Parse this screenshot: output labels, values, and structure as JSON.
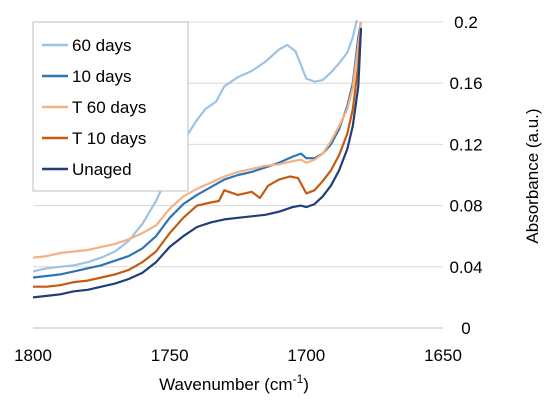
{
  "chart_data": {
    "type": "line",
    "xlabel": "Wavenumber (cm",
    "xlabel_sup": "-1",
    "xlabel_end": ")",
    "ylabel": "Absorbance (a.u.)",
    "xlim": [
      1800,
      1650
    ],
    "ylim": [
      0,
      0.2
    ],
    "x_ticks": [
      "1800",
      "1750",
      "1700",
      "1650"
    ],
    "y_ticks": [
      "0",
      "0.04",
      "0.08",
      "0.12",
      "0.16",
      "0.2"
    ],
    "y_tick_values": [
      0,
      0.04,
      0.08,
      0.12,
      0.16,
      0.2
    ],
    "x_tick_values": [
      1800,
      1750,
      1700,
      1650
    ],
    "grid": "horizontal",
    "legend_position": "top-left",
    "series": [
      {
        "name": "60 days",
        "color": "#9dc3e6",
        "points": [
          [
            1800,
            0.037
          ],
          [
            1795,
            0.039
          ],
          [
            1790,
            0.04
          ],
          [
            1785,
            0.041
          ],
          [
            1780,
            0.043
          ],
          [
            1775,
            0.046
          ],
          [
            1770,
            0.05
          ],
          [
            1765,
            0.057
          ],
          [
            1760,
            0.068
          ],
          [
            1755,
            0.083
          ],
          [
            1750,
            0.102
          ],
          [
            1745,
            0.122
          ],
          [
            1740,
            0.136
          ],
          [
            1737,
            0.143
          ],
          [
            1733,
            0.148
          ],
          [
            1730,
            0.158
          ],
          [
            1725,
            0.164
          ],
          [
            1720,
            0.168
          ],
          [
            1715,
            0.174
          ],
          [
            1710,
            0.182
          ],
          [
            1707,
            0.185
          ],
          [
            1704,
            0.181
          ],
          [
            1702,
            0.172
          ],
          [
            1700,
            0.163
          ],
          [
            1697,
            0.161
          ],
          [
            1694,
            0.162
          ],
          [
            1691,
            0.167
          ],
          [
            1688,
            0.173
          ],
          [
            1685,
            0.18
          ],
          [
            1683,
            0.19
          ],
          [
            1681,
            0.205
          ]
        ]
      },
      {
        "name": "10 days",
        "color": "#2e75b6",
        "points": [
          [
            1800,
            0.033
          ],
          [
            1795,
            0.034
          ],
          [
            1790,
            0.035
          ],
          [
            1785,
            0.037
          ],
          [
            1780,
            0.039
          ],
          [
            1775,
            0.041
          ],
          [
            1770,
            0.044
          ],
          [
            1765,
            0.047
          ],
          [
            1760,
            0.052
          ],
          [
            1755,
            0.06
          ],
          [
            1750,
            0.072
          ],
          [
            1745,
            0.081
          ],
          [
            1740,
            0.087
          ],
          [
            1735,
            0.092
          ],
          [
            1730,
            0.097
          ],
          [
            1725,
            0.1
          ],
          [
            1720,
            0.102
          ],
          [
            1715,
            0.105
          ],
          [
            1710,
            0.108
          ],
          [
            1705,
            0.112
          ],
          [
            1702,
            0.114
          ],
          [
            1700,
            0.111
          ],
          [
            1697,
            0.111
          ],
          [
            1694,
            0.114
          ],
          [
            1691,
            0.12
          ],
          [
            1688,
            0.13
          ],
          [
            1685,
            0.145
          ],
          [
            1683,
            0.16
          ],
          [
            1681,
            0.19
          ],
          [
            1680,
            0.2
          ]
        ]
      },
      {
        "name": "T 60 days",
        "color": "#f4b183",
        "points": [
          [
            1800,
            0.046
          ],
          [
            1795,
            0.047
          ],
          [
            1790,
            0.049
          ],
          [
            1785,
            0.05
          ],
          [
            1780,
            0.051
          ],
          [
            1775,
            0.053
          ],
          [
            1770,
            0.055
          ],
          [
            1765,
            0.058
          ],
          [
            1760,
            0.062
          ],
          [
            1755,
            0.067
          ],
          [
            1750,
            0.078
          ],
          [
            1745,
            0.086
          ],
          [
            1740,
            0.091
          ],
          [
            1735,
            0.095
          ],
          [
            1730,
            0.099
          ],
          [
            1725,
            0.102
          ],
          [
            1720,
            0.104
          ],
          [
            1715,
            0.106
          ],
          [
            1710,
            0.107
          ],
          [
            1705,
            0.109
          ],
          [
            1702,
            0.11
          ],
          [
            1700,
            0.108
          ],
          [
            1697,
            0.11
          ],
          [
            1694,
            0.114
          ],
          [
            1691,
            0.122
          ],
          [
            1688,
            0.132
          ],
          [
            1685,
            0.143
          ],
          [
            1683,
            0.157
          ],
          [
            1681,
            0.185
          ],
          [
            1680,
            0.2
          ]
        ]
      },
      {
        "name": "T 10 days",
        "color": "#c55a11",
        "points": [
          [
            1800,
            0.027
          ],
          [
            1795,
            0.027
          ],
          [
            1790,
            0.028
          ],
          [
            1785,
            0.03
          ],
          [
            1780,
            0.031
          ],
          [
            1775,
            0.033
          ],
          [
            1770,
            0.035
          ],
          [
            1765,
            0.038
          ],
          [
            1760,
            0.043
          ],
          [
            1755,
            0.05
          ],
          [
            1750,
            0.062
          ],
          [
            1745,
            0.072
          ],
          [
            1740,
            0.08
          ],
          [
            1735,
            0.082
          ],
          [
            1732,
            0.083
          ],
          [
            1730,
            0.09
          ],
          [
            1725,
            0.087
          ],
          [
            1720,
            0.089
          ],
          [
            1717,
            0.085
          ],
          [
            1714,
            0.093
          ],
          [
            1710,
            0.097
          ],
          [
            1706,
            0.099
          ],
          [
            1703,
            0.098
          ],
          [
            1700,
            0.088
          ],
          [
            1697,
            0.09
          ],
          [
            1694,
            0.096
          ],
          [
            1691,
            0.103
          ],
          [
            1688,
            0.113
          ],
          [
            1685,
            0.127
          ],
          [
            1683,
            0.143
          ],
          [
            1681,
            0.172
          ],
          [
            1680,
            0.196
          ]
        ]
      },
      {
        "name": "Unaged",
        "color": "#1f3e7a",
        "points": [
          [
            1800,
            0.02
          ],
          [
            1795,
            0.021
          ],
          [
            1790,
            0.022
          ],
          [
            1785,
            0.024
          ],
          [
            1780,
            0.025
          ],
          [
            1775,
            0.027
          ],
          [
            1770,
            0.029
          ],
          [
            1765,
            0.032
          ],
          [
            1760,
            0.036
          ],
          [
            1755,
            0.043
          ],
          [
            1750,
            0.053
          ],
          [
            1745,
            0.06
          ],
          [
            1740,
            0.066
          ],
          [
            1735,
            0.069
          ],
          [
            1730,
            0.071
          ],
          [
            1725,
            0.072
          ],
          [
            1720,
            0.073
          ],
          [
            1715,
            0.074
          ],
          [
            1710,
            0.076
          ],
          [
            1705,
            0.079
          ],
          [
            1702,
            0.08
          ],
          [
            1700,
            0.079
          ],
          [
            1697,
            0.081
          ],
          [
            1694,
            0.086
          ],
          [
            1691,
            0.093
          ],
          [
            1688,
            0.103
          ],
          [
            1685,
            0.117
          ],
          [
            1683,
            0.132
          ],
          [
            1681,
            0.158
          ],
          [
            1680,
            0.196
          ]
        ]
      }
    ]
  }
}
